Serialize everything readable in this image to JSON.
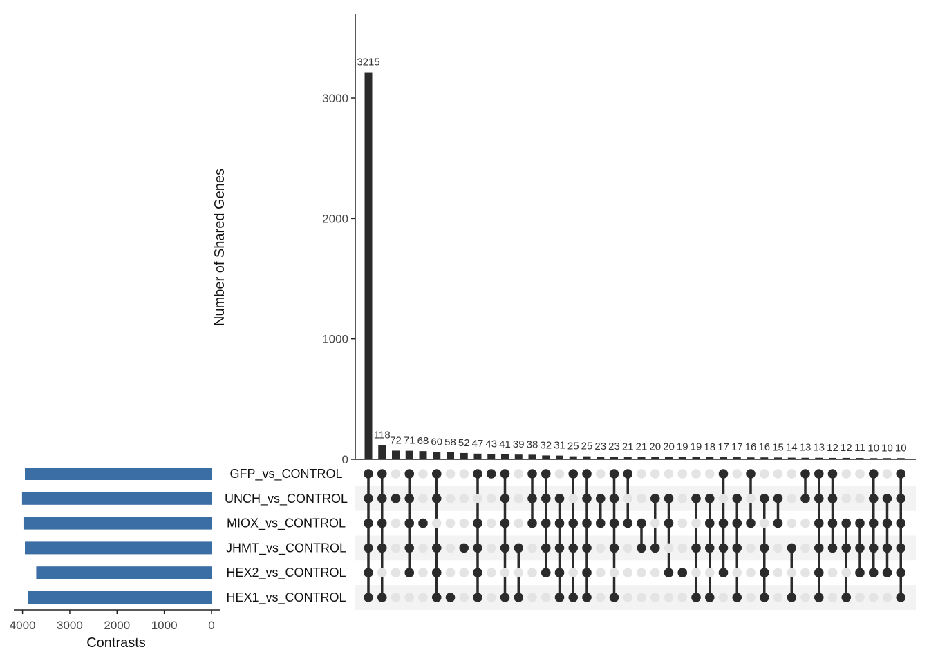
{
  "chart_data": {
    "type": "upset",
    "ylabel": "Number of Shared Genes",
    "ylim": [
      0,
      3700
    ],
    "yticks": [
      0,
      1000,
      2000,
      3000
    ],
    "set_size_xlabel": "Contrasts",
    "set_size_xticks": [
      4000,
      3000,
      2000,
      1000,
      0
    ],
    "set_size_xlim": [
      0,
      4200
    ],
    "bar_color": "#2b2b2b",
    "set_bar_color": "#3a6ea5",
    "dot_active_color": "#2b2b2b",
    "dot_inactive_color": "#e4e4e4",
    "sets": [
      {
        "name": "GFP_vs_CONTROL",
        "size": 3950
      },
      {
        "name": "UNCH_vs_CONTROL",
        "size": 4010
      },
      {
        "name": "MIOX_vs_CONTROL",
        "size": 3980
      },
      {
        "name": "JHMT_vs_CONTROL",
        "size": 3950
      },
      {
        "name": "HEX2_vs_CONTROL",
        "size": 3710
      },
      {
        "name": "HEX1_vs_CONTROL",
        "size": 3890
      }
    ],
    "intersections": [
      {
        "value": 3215,
        "members": [
          "GFP_vs_CONTROL",
          "UNCH_vs_CONTROL",
          "MIOX_vs_CONTROL",
          "JHMT_vs_CONTROL",
          "HEX2_vs_CONTROL",
          "HEX1_vs_CONTROL"
        ]
      },
      {
        "value": 118,
        "members": [
          "GFP_vs_CONTROL",
          "UNCH_vs_CONTROL",
          "MIOX_vs_CONTROL",
          "JHMT_vs_CONTROL",
          "HEX1_vs_CONTROL"
        ]
      },
      {
        "value": 72,
        "members": [
          "UNCH_vs_CONTROL"
        ]
      },
      {
        "value": 71,
        "members": [
          "GFP_vs_CONTROL",
          "UNCH_vs_CONTROL",
          "MIOX_vs_CONTROL",
          "JHMT_vs_CONTROL",
          "HEX2_vs_CONTROL"
        ]
      },
      {
        "value": 68,
        "members": [
          "MIOX_vs_CONTROL"
        ]
      },
      {
        "value": 60,
        "members": [
          "GFP_vs_CONTROL",
          "UNCH_vs_CONTROL",
          "JHMT_vs_CONTROL",
          "HEX2_vs_CONTROL",
          "HEX1_vs_CONTROL"
        ]
      },
      {
        "value": 58,
        "members": [
          "HEX1_vs_CONTROL"
        ]
      },
      {
        "value": 52,
        "members": [
          "JHMT_vs_CONTROL"
        ]
      },
      {
        "value": 47,
        "members": [
          "GFP_vs_CONTROL",
          "MIOX_vs_CONTROL",
          "JHMT_vs_CONTROL",
          "HEX2_vs_CONTROL",
          "HEX1_vs_CONTROL"
        ]
      },
      {
        "value": 43,
        "members": [
          "GFP_vs_CONTROL"
        ]
      },
      {
        "value": 41,
        "members": [
          "GFP_vs_CONTROL",
          "UNCH_vs_CONTROL",
          "MIOX_vs_CONTROL",
          "JHMT_vs_CONTROL",
          "HEX1_vs_CONTROL"
        ]
      },
      {
        "value": 39,
        "members": [
          "JHMT_vs_CONTROL",
          "HEX1_vs_CONTROL"
        ]
      },
      {
        "value": 38,
        "members": [
          "GFP_vs_CONTROL",
          "UNCH_vs_CONTROL",
          "MIOX_vs_CONTROL"
        ]
      },
      {
        "value": 32,
        "members": [
          "GFP_vs_CONTROL",
          "UNCH_vs_CONTROL",
          "MIOX_vs_CONTROL",
          "JHMT_vs_CONTROL",
          "HEX2_vs_CONTROL"
        ]
      },
      {
        "value": 31,
        "members": [
          "UNCH_vs_CONTROL",
          "MIOX_vs_CONTROL",
          "JHMT_vs_CONTROL",
          "HEX2_vs_CONTROL",
          "HEX1_vs_CONTROL"
        ]
      },
      {
        "value": 25,
        "members": [
          "GFP_vs_CONTROL",
          "MIOX_vs_CONTROL",
          "JHMT_vs_CONTROL",
          "HEX1_vs_CONTROL"
        ]
      },
      {
        "value": 25,
        "members": [
          "GFP_vs_CONTROL",
          "UNCH_vs_CONTROL",
          "MIOX_vs_CONTROL",
          "JHMT_vs_CONTROL",
          "HEX2_vs_CONTROL",
          "HEX1_vs_CONTROL"
        ]
      },
      {
        "value": 23,
        "members": [
          "UNCH_vs_CONTROL",
          "MIOX_vs_CONTROL"
        ]
      },
      {
        "value": 23,
        "members": [
          "GFP_vs_CONTROL",
          "UNCH_vs_CONTROL",
          "MIOX_vs_CONTROL",
          "JHMT_vs_CONTROL",
          "HEX1_vs_CONTROL"
        ]
      },
      {
        "value": 21,
        "members": [
          "GFP_vs_CONTROL",
          "MIOX_vs_CONTROL"
        ]
      },
      {
        "value": 21,
        "members": [
          "MIOX_vs_CONTROL",
          "JHMT_vs_CONTROL"
        ]
      },
      {
        "value": 20,
        "members": [
          "UNCH_vs_CONTROL",
          "JHMT_vs_CONTROL"
        ]
      },
      {
        "value": 20,
        "members": [
          "UNCH_vs_CONTROL",
          "MIOX_vs_CONTROL",
          "HEX2_vs_CONTROL"
        ]
      },
      {
        "value": 19,
        "members": [
          "HEX2_vs_CONTROL"
        ]
      },
      {
        "value": 19,
        "members": [
          "UNCH_vs_CONTROL",
          "JHMT_vs_CONTROL",
          "HEX1_vs_CONTROL"
        ]
      },
      {
        "value": 18,
        "members": [
          "UNCH_vs_CONTROL",
          "MIOX_vs_CONTROL",
          "JHMT_vs_CONTROL",
          "HEX1_vs_CONTROL"
        ]
      },
      {
        "value": 17,
        "members": [
          "GFP_vs_CONTROL",
          "MIOX_vs_CONTROL",
          "JHMT_vs_CONTROL",
          "HEX2_vs_CONTROL"
        ]
      },
      {
        "value": 17,
        "members": [
          "UNCH_vs_CONTROL",
          "MIOX_vs_CONTROL",
          "JHMT_vs_CONTROL",
          "HEX1_vs_CONTROL"
        ]
      },
      {
        "value": 16,
        "members": [
          "GFP_vs_CONTROL",
          "MIOX_vs_CONTROL"
        ]
      },
      {
        "value": 16,
        "members": [
          "UNCH_vs_CONTROL",
          "JHMT_vs_CONTROL",
          "HEX2_vs_CONTROL",
          "HEX1_vs_CONTROL"
        ]
      },
      {
        "value": 15,
        "members": [
          "UNCH_vs_CONTROL",
          "MIOX_vs_CONTROL"
        ]
      },
      {
        "value": 14,
        "members": [
          "JHMT_vs_CONTROL",
          "HEX1_vs_CONTROL"
        ]
      },
      {
        "value": 13,
        "members": [
          "GFP_vs_CONTROL",
          "UNCH_vs_CONTROL"
        ]
      },
      {
        "value": 13,
        "members": [
          "GFP_vs_CONTROL",
          "UNCH_vs_CONTROL",
          "MIOX_vs_CONTROL",
          "JHMT_vs_CONTROL",
          "HEX2_vs_CONTROL",
          "HEX1_vs_CONTROL"
        ]
      },
      {
        "value": 12,
        "members": [
          "GFP_vs_CONTROL",
          "UNCH_vs_CONTROL",
          "MIOX_vs_CONTROL",
          "JHMT_vs_CONTROL"
        ]
      },
      {
        "value": 12,
        "members": [
          "MIOX_vs_CONTROL",
          "JHMT_vs_CONTROL",
          "HEX1_vs_CONTROL"
        ]
      },
      {
        "value": 11,
        "members": [
          "MIOX_vs_CONTROL",
          "JHMT_vs_CONTROL",
          "HEX2_vs_CONTROL"
        ]
      },
      {
        "value": 10,
        "members": [
          "GFP_vs_CONTROL",
          "UNCH_vs_CONTROL",
          "MIOX_vs_CONTROL",
          "JHMT_vs_CONTROL",
          "HEX2_vs_CONTROL"
        ]
      },
      {
        "value": 10,
        "members": [
          "UNCH_vs_CONTROL",
          "MIOX_vs_CONTROL",
          "JHMT_vs_CONTROL",
          "HEX2_vs_CONTROL"
        ]
      },
      {
        "value": 10,
        "members": [
          "GFP_vs_CONTROL",
          "UNCH_vs_CONTROL",
          "MIOX_vs_CONTROL",
          "JHMT_vs_CONTROL",
          "HEX2_vs_CONTROL",
          "HEX1_vs_CONTROL"
        ]
      }
    ]
  }
}
